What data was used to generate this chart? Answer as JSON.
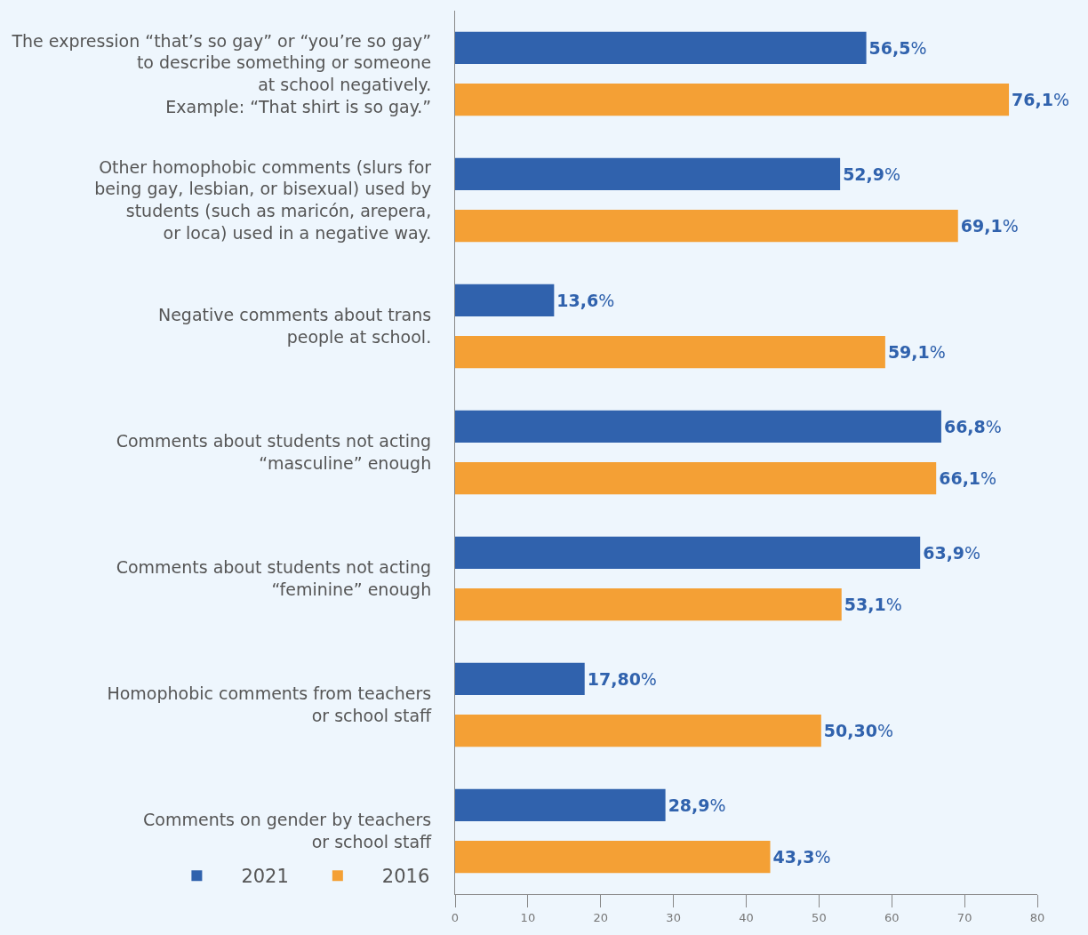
{
  "chart_data": {
    "type": "bar",
    "orientation": "horizontal",
    "categories": [
      "The expression “that’s so gay” or “you’re so gay”\nto describe something or someone\nat school negatively.\nExample: “That shirt is so gay.”",
      "Other homophobic comments (slurs for\nbeing gay, lesbian, or bisexual) used by\nstudents (such as maricón, arepera,\nor loca) used in a negative way.",
      "Negative comments about trans\npeople at school.",
      "Comments about students not acting\n“masculine” enough",
      "Comments about students not acting\n“feminine” enough",
      "Homophobic comments from teachers\nor school staff",
      "Comments on gender by teachers\nor school staff"
    ],
    "series": [
      {
        "name": "2021",
        "color": "#3062ad",
        "values": [
          56.5,
          52.9,
          13.6,
          66.8,
          63.9,
          17.8,
          28.9
        ],
        "value_labels": [
          "56,5%",
          "52,9%",
          "13,6%",
          "66,8%",
          "63,9%",
          "17,80%",
          "28,9%"
        ]
      },
      {
        "name": "2016",
        "color": "#f4a035",
        "values": [
          76.1,
          69.1,
          59.1,
          66.1,
          53.1,
          50.3,
          43.3
        ],
        "value_labels": [
          "76,1%",
          "69,1%",
          "59,1%",
          "66,1%",
          "53,1%",
          "50,30%",
          "43,3%"
        ]
      }
    ],
    "xlim": [
      0,
      80
    ],
    "xticks": [
      0,
      10,
      20,
      30,
      40,
      50,
      60,
      70,
      80
    ],
    "grid": false,
    "legend": "bottom left"
  }
}
